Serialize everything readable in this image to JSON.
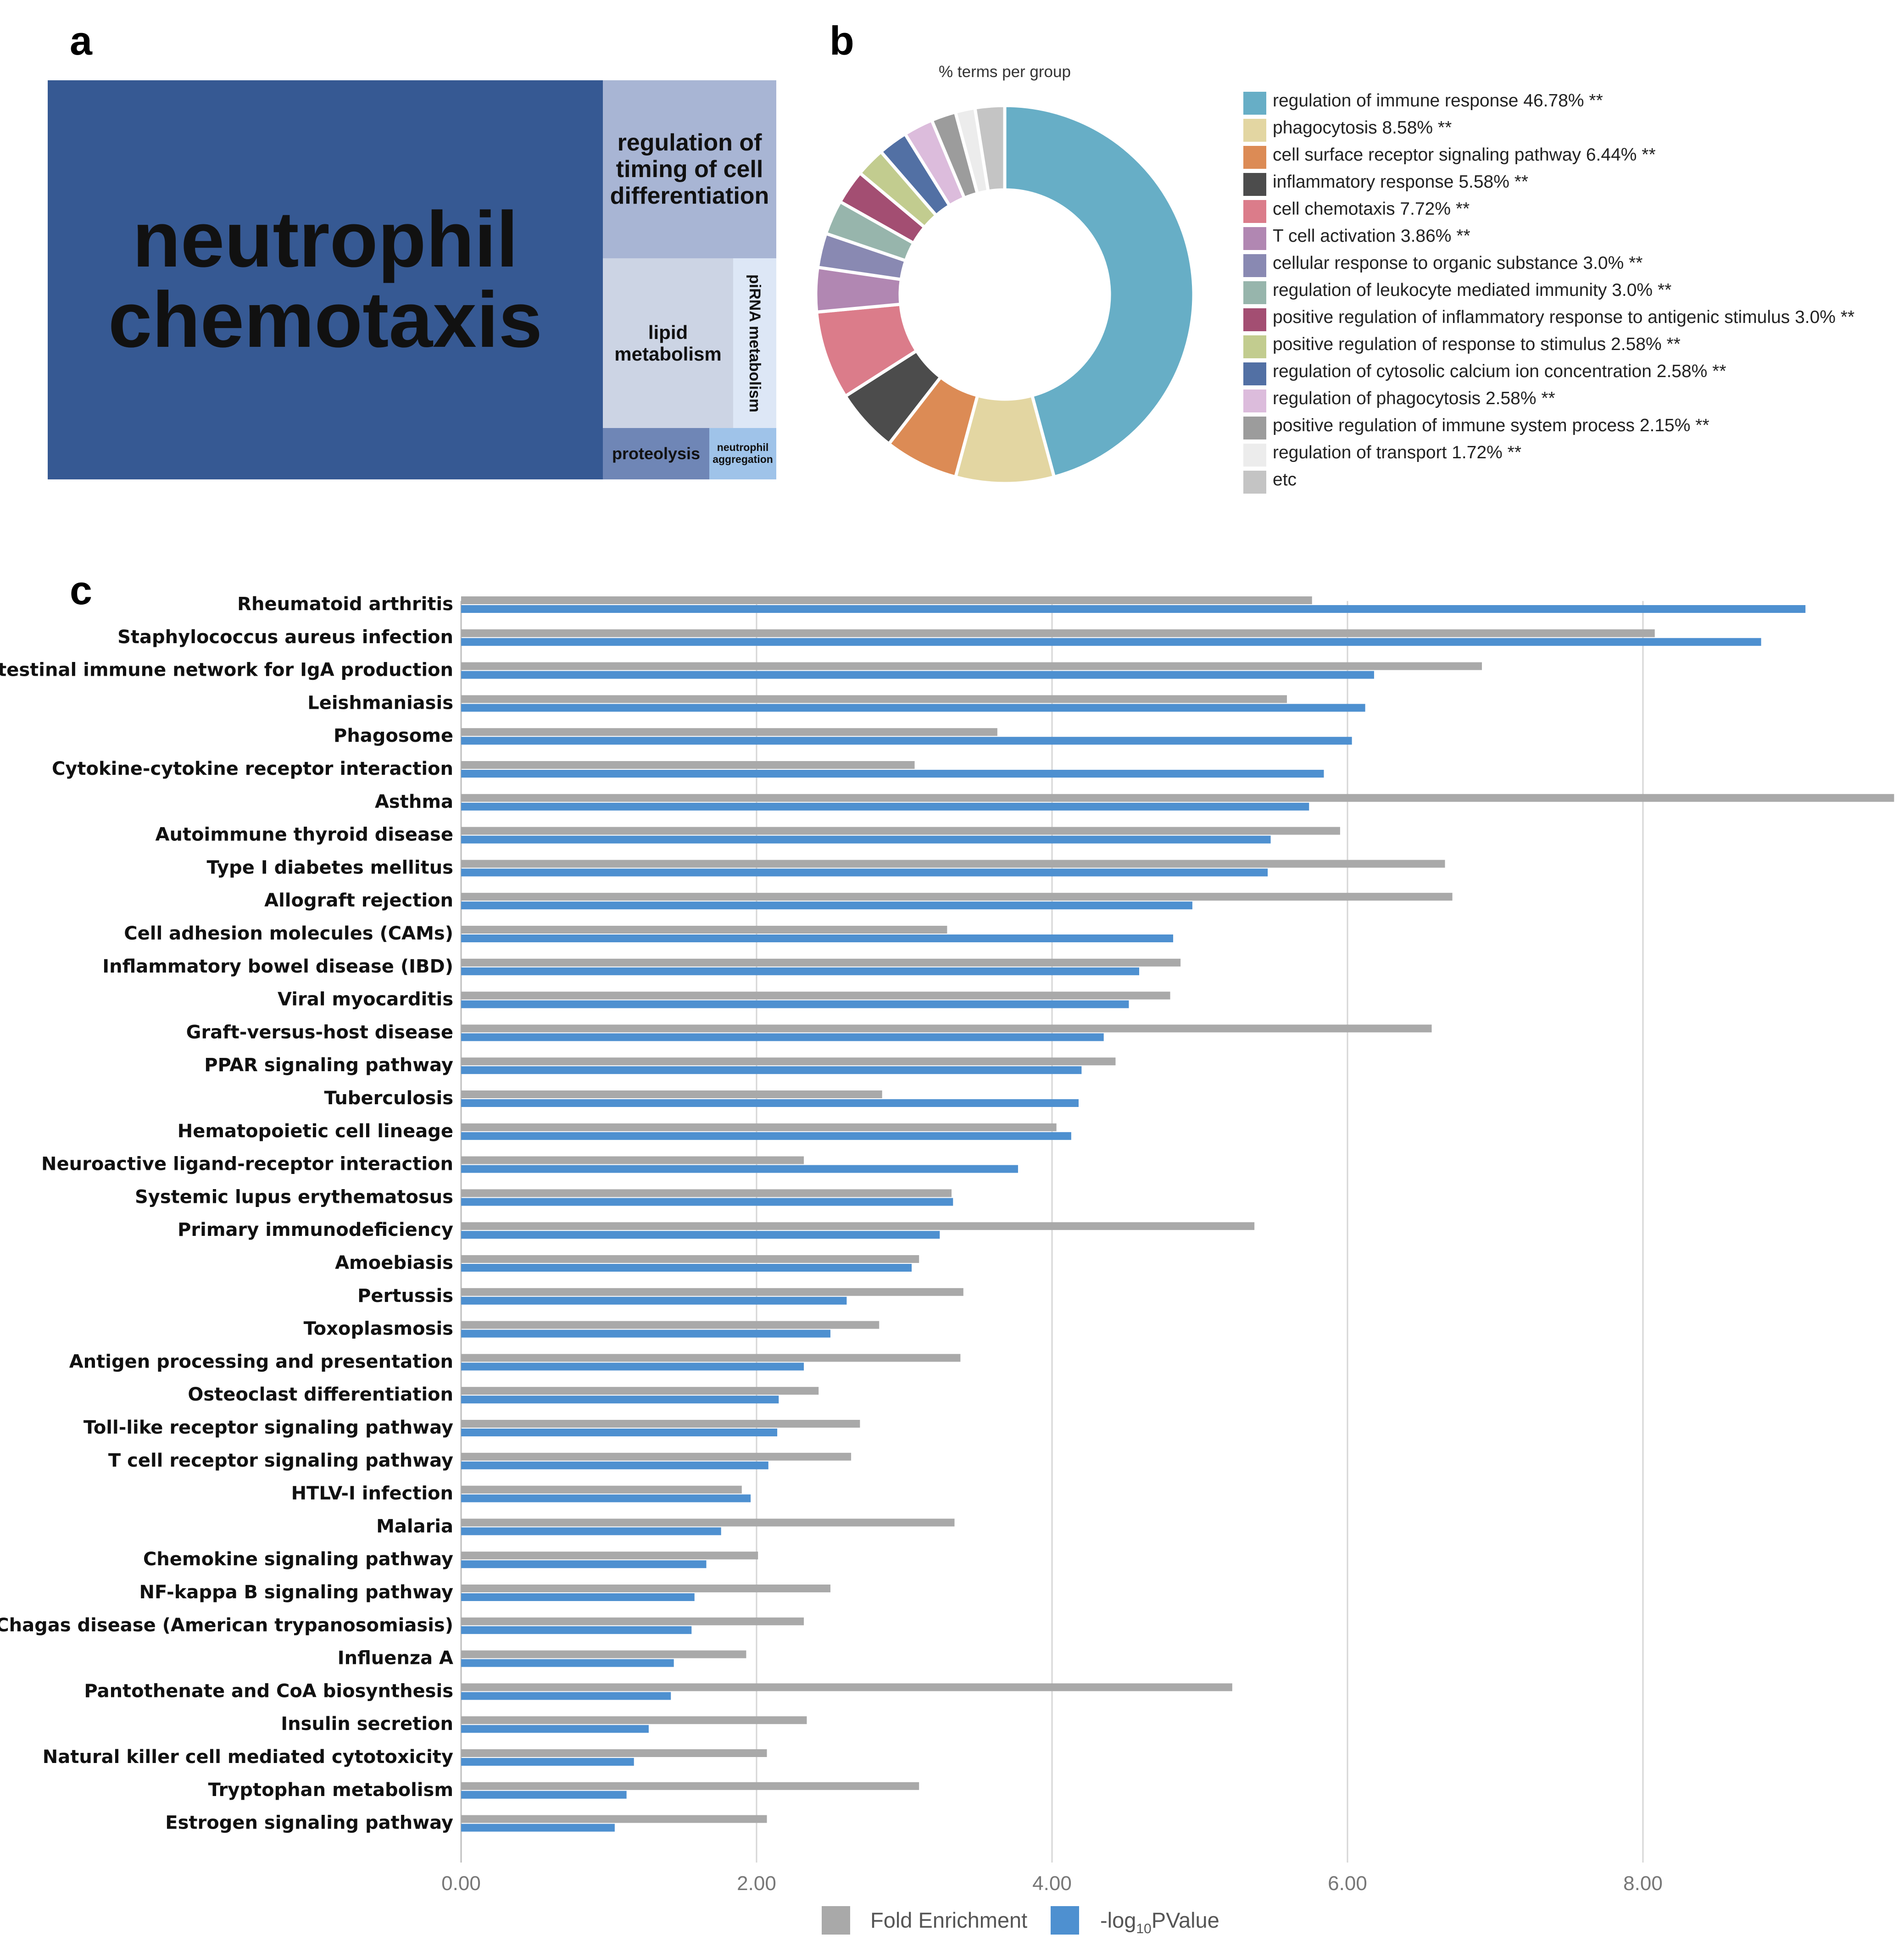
{
  "panels": {
    "a": "a",
    "b": "b",
    "c": "c"
  },
  "treemap": {
    "title": "",
    "tiles": [
      {
        "label": "neutrophil chemotaxis",
        "color": "#365993"
      },
      {
        "label": "regulation of timing of cell differentiation",
        "color": "#a8b5d4"
      },
      {
        "label": "lipid metabolism",
        "color": "#ccd4e4"
      },
      {
        "label": "piRNA metabolism",
        "color": "#dde7f6"
      },
      {
        "label": "proteolysis",
        "color": "#6f86b6"
      },
      {
        "label": "neutrophil aggregation",
        "color": "#9fc3e9"
      }
    ]
  },
  "chart_data": [
    {
      "type": "pie",
      "title": "% terms per group",
      "slices": [
        {
          "label": "regulation of immune response",
          "value": 46.78,
          "legend": "regulation of immune response 46.78% **",
          "color": "#67aec6"
        },
        {
          "label": "phagocytosis",
          "value": 8.58,
          "legend": "phagocytosis 8.58% **",
          "color": "#e3d6a2"
        },
        {
          "label": "cell surface receptor signaling pathway",
          "value": 6.44,
          "legend": "cell surface receptor signaling pathway 6.44% **",
          "color": "#dc8b55"
        },
        {
          "label": "inflammatory response",
          "value": 5.58,
          "legend": "inflammatory response 5.58% **",
          "color": "#4c4c4c"
        },
        {
          "label": "cell chemotaxis",
          "value": 7.72,
          "legend": "cell chemotaxis 7.72% **",
          "color": "#db7c8a"
        },
        {
          "label": "T cell activation",
          "value": 3.86,
          "legend": "T cell activation 3.86% **",
          "color": "#b187b2"
        },
        {
          "label": "cellular response to organic substance",
          "value": 3.0,
          "legend": "cellular response to organic substance 3.0% **",
          "color": "#8989b2"
        },
        {
          "label": "regulation of leukocyte mediated immunity",
          "value": 3.0,
          "legend": "regulation of leukocyte mediated immunity 3.0% **",
          "color": "#97b5ac"
        },
        {
          "label": "positive regulation of inflammatory response to antigenic stimulus",
          "value": 3.0,
          "legend": "positive regulation of inflammatory response to antigenic stimulus 3.0% **",
          "color": "#a34e72"
        },
        {
          "label": "positive regulation of response to stimulus",
          "value": 2.58,
          "legend": "positive regulation of response to stimulus 2.58% **",
          "color": "#c2cc8f"
        },
        {
          "label": "regulation of cytosolic calcium ion concentration",
          "value": 2.58,
          "legend": "regulation of cytosolic calcium ion concentration 2.58% **",
          "color": "#5270a4"
        },
        {
          "label": "regulation of phagocytosis",
          "value": 2.58,
          "legend": "regulation of phagocytosis 2.58% **",
          "color": "#dcbcdc"
        },
        {
          "label": "positive regulation of immune system process",
          "value": 2.15,
          "legend": "positive regulation of immune system process 2.15% **",
          "color": "#9c9c9c"
        },
        {
          "label": "regulation of transport",
          "value": 1.72,
          "legend": "regulation of transport 1.72% **",
          "color": "#ececec"
        },
        {
          "label": "etc",
          "value": 2.58,
          "legend": "etc",
          "color": "#c4c4c4"
        }
      ]
    },
    {
      "type": "bar",
      "orientation": "horizontal",
      "title": "",
      "xlabel": "",
      "ylabel": "",
      "xlim": [
        0,
        9.7
      ],
      "xticks": [
        0,
        2,
        4,
        6,
        8
      ],
      "xtick_labels": [
        "0.00",
        "2.00",
        "4.00",
        "6.00",
        "8.00"
      ],
      "grid": true,
      "legend_position": "bottom",
      "categories": [
        "Rheumatoid arthritis",
        "Staphylococcus aureus infection",
        "Intestinal immune network for IgA production",
        "Leishmaniasis",
        "Phagosome",
        "Cytokine-cytokine receptor interaction",
        "Asthma",
        "Autoimmune thyroid disease",
        "Type I diabetes mellitus",
        "Allograft rejection",
        "Cell adhesion molecules (CAMs)",
        "Inflammatory bowel disease (IBD)",
        "Viral myocarditis",
        "Graft-versus-host disease",
        "PPAR signaling pathway",
        "Tuberculosis",
        "Hematopoietic cell lineage",
        "Neuroactive ligand-receptor interaction",
        "Systemic lupus erythematosus",
        "Primary immunodeficiency",
        "Amoebiasis",
        "Pertussis",
        "Toxoplasmosis",
        "Antigen processing and presentation",
        "Osteoclast differentiation",
        "Toll-like receptor signaling pathway",
        "T cell receptor signaling pathway",
        "HTLV-I infection",
        "Malaria",
        "Chemokine signaling pathway",
        "NF-kappa B signaling pathway",
        "Chagas disease (American trypanosomiasis)",
        "Influenza A",
        "Pantothenate and CoA biosynthesis",
        "Insulin secretion",
        "Natural killer cell mediated cytotoxicity",
        "Tryptophan metabolism",
        "Estrogen signaling pathway"
      ],
      "series": [
        {
          "name": "Fold Enrichment",
          "color": "#a9a9a9",
          "values": [
            5.76,
            8.08,
            6.91,
            5.59,
            3.63,
            3.07,
            9.7,
            5.95,
            6.66,
            6.71,
            3.29,
            4.87,
            4.8,
            6.57,
            4.43,
            2.85,
            4.03,
            2.32,
            3.32,
            5.37,
            3.1,
            3.4,
            2.83,
            3.38,
            2.42,
            2.7,
            2.64,
            1.9,
            3.34,
            2.01,
            2.5,
            2.32,
            1.93,
            5.22,
            2.34,
            2.07,
            3.1,
            2.07
          ]
        },
        {
          "name": "-log10PValue",
          "color": "#4e90d0",
          "values": [
            9.1,
            8.8,
            6.18,
            6.12,
            6.03,
            5.84,
            5.74,
            5.48,
            5.46,
            4.95,
            4.82,
            4.59,
            4.52,
            4.35,
            4.2,
            4.18,
            4.13,
            3.77,
            3.33,
            3.24,
            3.05,
            2.61,
            2.5,
            2.32,
            2.15,
            2.14,
            2.08,
            1.96,
            1.76,
            1.66,
            1.58,
            1.56,
            1.44,
            1.42,
            1.27,
            1.17,
            1.12,
            1.04
          ]
        }
      ],
      "legend": {
        "fold_label": "Fold Enrichment",
        "p_prefix": "-log",
        "p_sub": "10",
        "p_suffix": "PValue"
      }
    }
  ]
}
